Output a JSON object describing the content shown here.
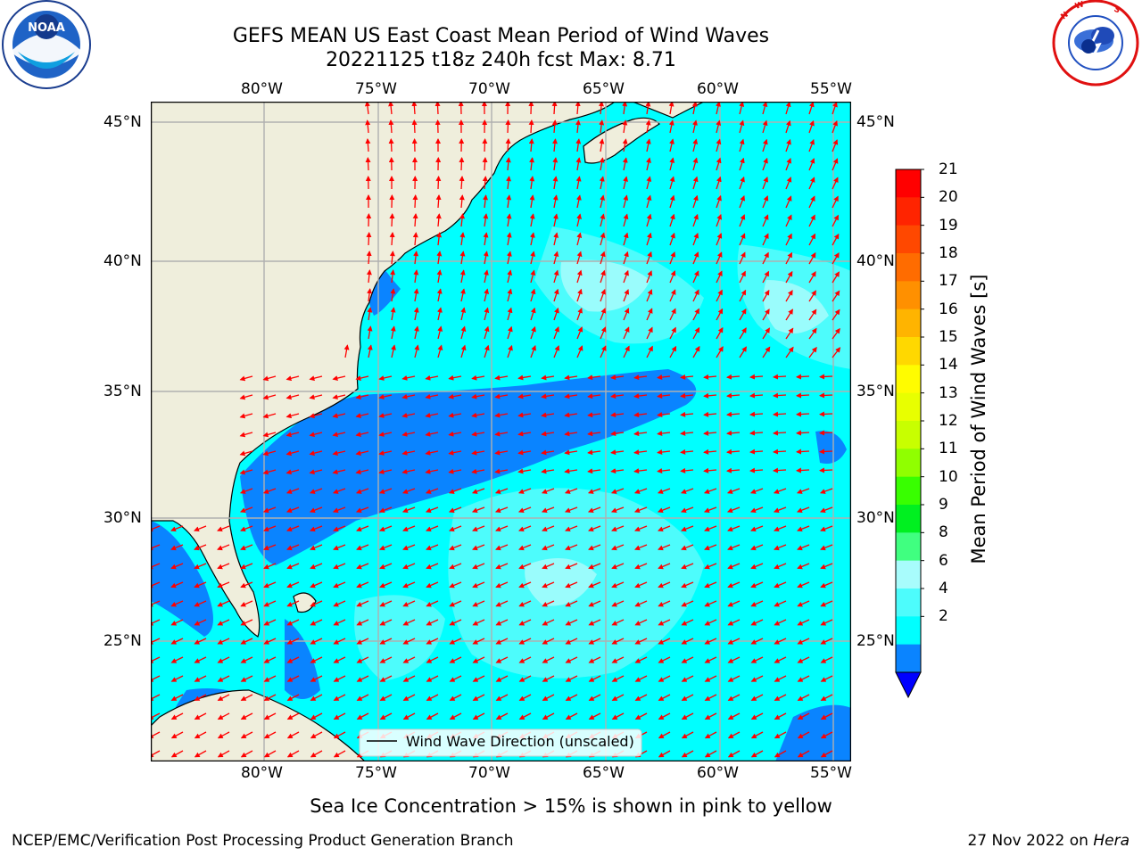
{
  "header": {
    "title_line1": "GEFS MEAN US East Coast Mean Period of Wind Waves",
    "title_line2": "20221125 t18z 240h fcst   Max: 8.71"
  },
  "logos": {
    "noaa_text": "NOAA",
    "noaa_ring_text": "NATIONAL OCEANIC AND ATMOSPHERIC ADMINISTRATION · U.S. DEPARTMENT OF COMMERCE",
    "nws_ring_text": "NATIONAL WEATHER SERVICE"
  },
  "map": {
    "lon_labels": [
      "80°W",
      "75°W",
      "70°W",
      "65°W",
      "60°W",
      "55°W"
    ],
    "lat_labels": [
      "45°N",
      "40°N",
      "35°N",
      "30°N",
      "25°N"
    ],
    "legend_label": "Wind Wave Direction (unscaled)",
    "colors": {
      "land": "#efeedc",
      "ocean_2_4": "#0a84ff",
      "ocean_4_6": "#00ffff",
      "ocean_6_8": "#4dfcfc",
      "ocean_8_9": "#a8fcfc",
      "arrow": "#ff0000",
      "grid": "#b0b0b0"
    }
  },
  "colorbar": {
    "label": "Mean Period of Wind Waves [s]",
    "ticks": [
      "21",
      "20",
      "19",
      "18",
      "17",
      "16",
      "15",
      "14",
      "13",
      "12",
      "11",
      "10",
      "9",
      "8",
      "6",
      "4",
      "2"
    ],
    "colors": [
      "#ff0000",
      "#ff2400",
      "#ff4800",
      "#ff6c00",
      "#ff9000",
      "#ffb400",
      "#ffd800",
      "#fffc00",
      "#e8ff00",
      "#c8ff00",
      "#90ff00",
      "#38ff00",
      "#00f020",
      "#40ff80",
      "#a8fcfc",
      "#4dfcfc",
      "#00ffff",
      "#0a84ff"
    ],
    "under_color": "#0000ff"
  },
  "footer": {
    "note": "Sea Ice Concentration > 15% is shown in pink to yellow",
    "left": "NCEP/EMC/Verification Post Processing Product Generation Branch",
    "right_date": "27 Nov 2022 on ",
    "right_host": "Hera"
  }
}
